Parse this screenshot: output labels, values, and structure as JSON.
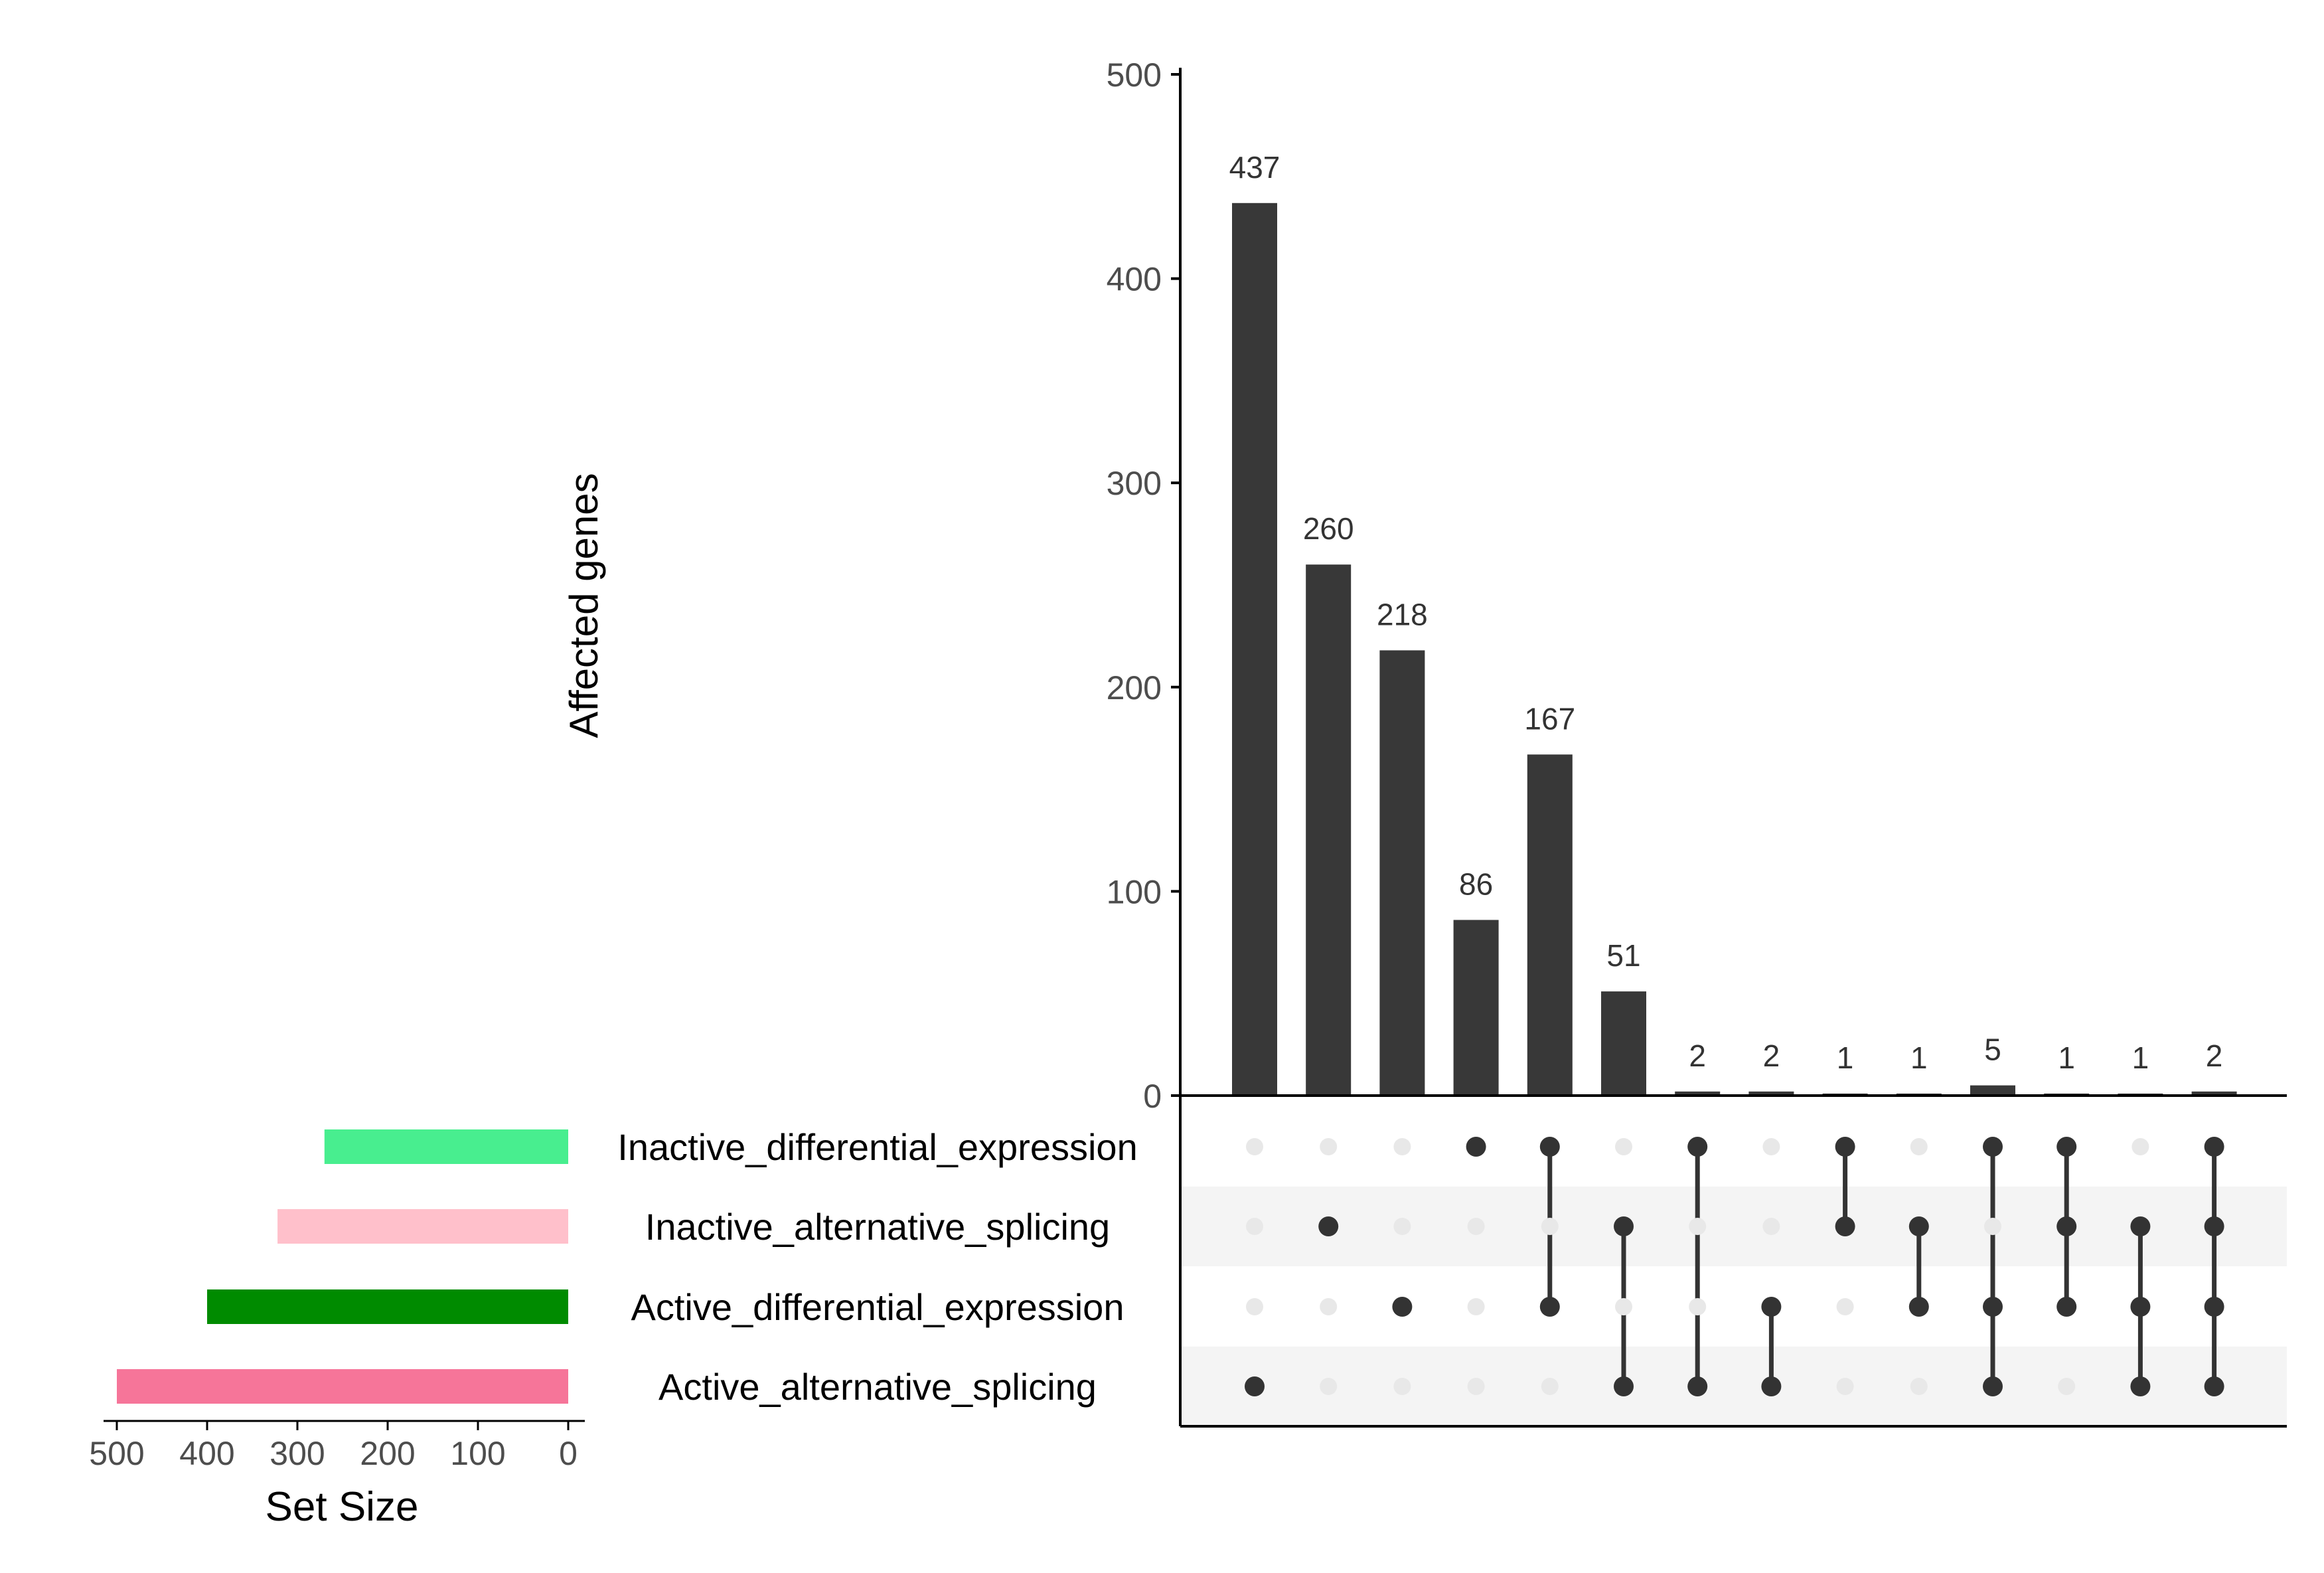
{
  "chart_data": {
    "type": "upset",
    "ylabel": "Affected genes",
    "ylim": [
      0,
      500
    ],
    "yticks": [
      0,
      100,
      200,
      300,
      400,
      500
    ],
    "sets": [
      {
        "name": "Inactive_differential_expression",
        "size": 270,
        "color": "#48EE8F"
      },
      {
        "name": "Inactive_alternative_splicing",
        "size": 322,
        "color": "#FFC0CB"
      },
      {
        "name": "Active_differential_expression",
        "size": 400,
        "color": "#008B00"
      },
      {
        "name": "Active_alternative_splicing",
        "size": 500,
        "color": "#F67599"
      }
    ],
    "set_size_axis": {
      "label": "Set Size",
      "max": 500,
      "ticks": [
        500,
        400,
        300,
        200,
        100,
        0
      ]
    },
    "intersections": [
      {
        "sets": [
          "Active_alternative_splicing"
        ],
        "value": 437,
        "label": "437"
      },
      {
        "sets": [
          "Inactive_alternative_splicing"
        ],
        "value": 260,
        "label": "260"
      },
      {
        "sets": [
          "Active_differential_expression"
        ],
        "value": 218,
        "label": "218"
      },
      {
        "sets": [
          "Inactive_differential_expression"
        ],
        "value": 86,
        "label": "86"
      },
      {
        "sets": [
          "Inactive_differential_expression",
          "Active_differential_expression"
        ],
        "value": 167,
        "label": "167"
      },
      {
        "sets": [
          "Inactive_alternative_splicing",
          "Active_alternative_splicing"
        ],
        "value": 51,
        "label": "51"
      },
      {
        "sets": [
          "Inactive_differential_expression",
          "Active_alternative_splicing"
        ],
        "value": 2,
        "label": "2"
      },
      {
        "sets": [
          "Active_differential_expression",
          "Active_alternative_splicing"
        ],
        "value": 2,
        "label": "2"
      },
      {
        "sets": [
          "Inactive_differential_expression",
          "Inactive_alternative_splicing"
        ],
        "value": 1,
        "label": "1"
      },
      {
        "sets": [
          "Inactive_alternative_splicing",
          "Active_differential_expression"
        ],
        "value": 1,
        "label": "1"
      },
      {
        "sets": [
          "Inactive_differential_expression",
          "Active_differential_expression",
          "Active_alternative_splicing"
        ],
        "value": 5,
        "label": "5"
      },
      {
        "sets": [
          "Inactive_differential_expression",
          "Inactive_alternative_splicing",
          "Active_differential_expression"
        ],
        "value": 1,
        "label": "1"
      },
      {
        "sets": [
          "Inactive_alternative_splicing",
          "Active_differential_expression",
          "Active_alternative_splicing"
        ],
        "value": 1,
        "label": "1"
      },
      {
        "sets": [
          "Inactive_differential_expression",
          "Inactive_alternative_splicing",
          "Active_differential_expression",
          "Active_alternative_splicing"
        ],
        "value": 2,
        "label": "2"
      }
    ],
    "colors": {
      "bar": "#383838",
      "dot_active": "#333333",
      "dot_inactive": "#E8E8E8",
      "stripe": "#F4F4F4",
      "axis": "#000000",
      "tick_text": "#4D4D4D"
    }
  }
}
